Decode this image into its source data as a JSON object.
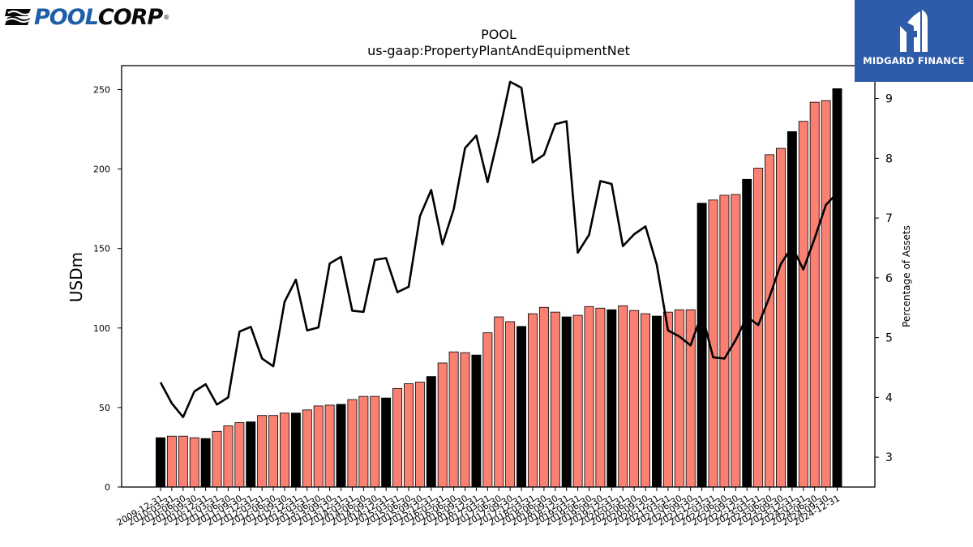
{
  "chart_data": {
    "type": "bar",
    "title": "POOL",
    "subtitle": "us-gaap:PropertyPlantAndEquipmentNet",
    "ylabel": "USDm",
    "y2label": "Percentage of Assets",
    "ylim": [
      0,
      265
    ],
    "y2lim": [
      2.5,
      9.55
    ],
    "yticks": [
      0,
      50,
      100,
      150,
      200,
      250
    ],
    "y2ticks": [
      3,
      4,
      5,
      6,
      7,
      8,
      9
    ],
    "categories": [
      "2009-12-31",
      "2010-03-31",
      "2010-06-30",
      "2010-09-30",
      "2010-12-31",
      "2011-03-31",
      "2011-06-30",
      "2011-09-30",
      "2011-12-31",
      "2012-03-31",
      "2012-06-30",
      "2012-09-30",
      "2012-12-31",
      "2013-03-31",
      "2013-06-30",
      "2013-09-30",
      "2013-12-31",
      "2014-03-31",
      "2014-06-30",
      "2014-09-30",
      "2014-12-31",
      "2015-03-31",
      "2015-06-30",
      "2015-09-30",
      "2015-12-31",
      "2016-03-31",
      "2016-06-30",
      "2016-09-30",
      "2016-12-31",
      "2017-03-31",
      "2017-06-30",
      "2017-09-30",
      "2017-12-31",
      "2018-03-31",
      "2018-06-30",
      "2018-09-30",
      "2018-12-31",
      "2019-03-31",
      "2019-06-30",
      "2019-09-30",
      "2019-12-31",
      "2020-03-31",
      "2020-06-30",
      "2020-09-30",
      "2020-12-31",
      "2021-03-31",
      "2021-06-30",
      "2021-09-30",
      "2021-12-31",
      "2022-03-31",
      "2022-06-30",
      "2022-09-30",
      "2022-12-31",
      "2023-03-31",
      "2023-06-30",
      "2023-09-30",
      "2023-12-31",
      "2024-03-31",
      "2024-06-30",
      "2024-09-30",
      "2024-12-31"
    ],
    "visible_tick_labels": [
      "2009-12-31",
      "2010-03-31",
      "2010-06-30",
      "2010-09-30",
      "2010-12-31",
      "2011-03-31",
      "2011-06-30",
      "2011-09-30",
      "2011-12-31",
      "2012-03-31",
      "2012-06-30",
      "2012-09-30",
      "2012-12-31",
      "2013-03-31",
      "2013-06-30",
      "2013-09-30",
      "2013-12-31",
      "2014-03-31",
      "2014-06-30",
      "2014-09-30",
      "2014-12-31",
      "2015-03-31",
      "2015-06-30",
      "2015-09-30",
      "2015-12-31",
      "2016-03-31",
      "2016-06-30",
      "2016-09-30",
      "2016-12-31",
      "2017-03-31",
      "2017-06-30",
      "2017-09-30",
      "2017-12-31",
      "2018-03-31",
      "2018-06-30",
      "2018-09-30",
      "2018-12-31",
      "2019-03-31",
      "2019-06-30",
      "2019-09-30",
      "2019-12-31",
      "2020-03-31",
      "2020-06-30",
      "2020-09-30",
      "2020-12-31",
      "2021-03-31",
      "2021-06-30",
      "2021-09-30",
      "2021-12-31",
      "2022-03-31",
      "2022-06-30",
      "2022-09-30",
      "2022-12-31",
      "2023-03-31",
      "2023-06-30",
      "2023-09-30",
      "2023-12-31",
      "2024-03-31",
      "2024-06-30",
      "2024-09-30",
      "2024-12-31"
    ],
    "series": [
      {
        "kind": "bar",
        "values": [
          31,
          32,
          32,
          31,
          30.5,
          35,
          38.5,
          40.5,
          41,
          45,
          45,
          46.5,
          46.5,
          48.5,
          51,
          51.5,
          52,
          55,
          57,
          57,
          56,
          62,
          65,
          66,
          69.5,
          78,
          85,
          84.5,
          83,
          97,
          107,
          104,
          101,
          109,
          113,
          110,
          107,
          108,
          113.5,
          112.5,
          111.5,
          114,
          111,
          109,
          107.5,
          110,
          111.5,
          111.5,
          178.5,
          180.5,
          183.5,
          184,
          193.5,
          200.5,
          209,
          213,
          223.5,
          230,
          242,
          243,
          250.5
        ],
        "colors": [
          "#000000",
          "#fa8072",
          "#fa8072",
          "#fa8072",
          "#000000",
          "#fa8072",
          "#fa8072",
          "#fa8072",
          "#000000",
          "#fa8072",
          "#fa8072",
          "#fa8072",
          "#000000",
          "#fa8072",
          "#fa8072",
          "#fa8072",
          "#000000",
          "#fa8072",
          "#fa8072",
          "#fa8072",
          "#000000",
          "#fa8072",
          "#fa8072",
          "#fa8072",
          "#000000",
          "#fa8072",
          "#fa8072",
          "#fa8072",
          "#000000",
          "#fa8072",
          "#fa8072",
          "#fa8072",
          "#000000",
          "#fa8072",
          "#fa8072",
          "#fa8072",
          "#000000",
          "#fa8072",
          "#fa8072",
          "#fa8072",
          "#000000",
          "#fa8072",
          "#fa8072",
          "#fa8072",
          "#000000",
          "#fa8072",
          "#fa8072",
          "#fa8072",
          "#000000",
          "#fa8072",
          "#fa8072",
          "#fa8072",
          "#000000",
          "#fa8072",
          "#fa8072",
          "#fa8072",
          "#000000",
          "#fa8072",
          "#fa8072",
          "#fa8072",
          "#000000"
        ]
      },
      {
        "kind": "line",
        "axis": "right",
        "color": "#000000",
        "values": [
          4.25,
          3.9,
          3.67,
          4.1,
          4.22,
          3.88,
          4.0,
          5.1,
          5.18,
          4.65,
          4.52,
          5.6,
          5.97,
          5.12,
          5.17,
          6.24,
          6.35,
          5.45,
          5.43,
          6.3,
          6.33,
          5.76,
          5.85,
          7.03,
          7.47,
          6.56,
          7.15,
          8.17,
          8.38,
          7.6,
          8.4,
          9.28,
          9.18,
          7.93,
          8.06,
          8.57,
          8.62,
          6.42,
          6.72,
          7.62,
          7.57,
          6.53,
          6.73,
          6.86,
          6.22,
          5.12,
          5.02,
          4.87,
          5.4,
          4.67,
          4.65,
          4.96,
          5.35,
          5.21,
          5.68,
          6.23,
          6.52,
          6.14,
          6.66,
          7.22,
          7.42
        ]
      }
    ],
    "grid": false,
    "legend": "none"
  },
  "logos": {
    "left": {
      "name": "POOLCORP",
      "part1": "POOL",
      "part2": "CORP",
      "mark": "®",
      "colors": {
        "pool": "#1f5fa8",
        "corp": "#0a0a0a"
      }
    },
    "right": {
      "name": "MIDGARD FINANCE",
      "background": "#2e5caa",
      "text_color": "#ffffff"
    }
  },
  "colors": {
    "bar_highlight": "#000000",
    "bar_default": "#fa8072",
    "line": "#000000"
  }
}
